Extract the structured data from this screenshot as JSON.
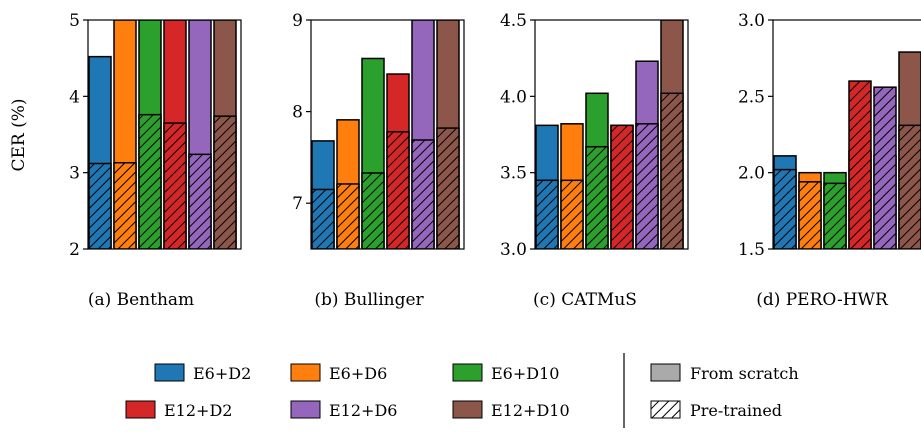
{
  "chart_data": [
    {
      "type": "bar",
      "caption": "(a) Bentham",
      "ylabel": "CER (%)",
      "ylim": [
        2,
        5
      ],
      "yticks": [
        "2",
        "3",
        "4",
        "5"
      ],
      "series": [
        {
          "name": "E6+D2",
          "from_scratch": 4.52,
          "pretrained": 3.12
        },
        {
          "name": "E6+D6",
          "from_scratch": 5.0,
          "pretrained": 3.13
        },
        {
          "name": "E6+D10",
          "from_scratch": 5.0,
          "pretrained": 3.76
        },
        {
          "name": "E12+D2",
          "from_scratch": 5.0,
          "pretrained": 3.65
        },
        {
          "name": "E12+D6",
          "from_scratch": 5.0,
          "pretrained": 3.24
        },
        {
          "name": "E12+D10",
          "from_scratch": 5.0,
          "pretrained": 3.74
        }
      ]
    },
    {
      "type": "bar",
      "caption": "(b) Bullinger",
      "ylabel": "",
      "ylim": [
        6.5,
        9
      ],
      "yticks": [
        "7",
        "8",
        "9"
      ],
      "series": [
        {
          "name": "E6+D2",
          "from_scratch": 7.68,
          "pretrained": 7.15
        },
        {
          "name": "E6+D6",
          "from_scratch": 7.91,
          "pretrained": 7.21
        },
        {
          "name": "E6+D10",
          "from_scratch": 8.58,
          "pretrained": 7.33
        },
        {
          "name": "E12+D2",
          "from_scratch": 8.41,
          "pretrained": 7.78
        },
        {
          "name": "E12+D6",
          "from_scratch": 9.0,
          "pretrained": 7.69
        },
        {
          "name": "E12+D10",
          "from_scratch": 9.0,
          "pretrained": 7.82
        }
      ]
    },
    {
      "type": "bar",
      "caption": "(c) CATMuS",
      "ylabel": "",
      "ylim": [
        3.0,
        4.5
      ],
      "yticks": [
        "3.0",
        "3.5",
        "4.0",
        "4.5"
      ],
      "series": [
        {
          "name": "E6+D2",
          "from_scratch": 3.81,
          "pretrained": 3.45
        },
        {
          "name": "E6+D6",
          "from_scratch": 3.82,
          "pretrained": 3.45
        },
        {
          "name": "E6+D10",
          "from_scratch": 4.02,
          "pretrained": 3.67
        },
        {
          "name": "E12+D2",
          "from_scratch": 3.81,
          "pretrained": 3.81
        },
        {
          "name": "E12+D6",
          "from_scratch": 4.23,
          "pretrained": 3.82
        },
        {
          "name": "E12+D10",
          "from_scratch": 4.5,
          "pretrained": 4.02
        }
      ]
    },
    {
      "type": "bar",
      "caption": "(d) PERO-HWR",
      "ylabel": "",
      "ylim": [
        1.5,
        3.0
      ],
      "yticks": [
        "1.5",
        "2.0",
        "2.5",
        "3.0"
      ],
      "series": [
        {
          "name": "E6+D2",
          "from_scratch": 2.11,
          "pretrained": 2.02
        },
        {
          "name": "E6+D6",
          "from_scratch": 2.0,
          "pretrained": 1.94
        },
        {
          "name": "E6+D10",
          "from_scratch": 2.0,
          "pretrained": 1.93
        },
        {
          "name": "E12+D2",
          "from_scratch": 2.14,
          "pretrained": 2.6
        },
        {
          "name": "E12+D6",
          "from_scratch": 2.11,
          "pretrained": 2.56
        },
        {
          "name": "E12+D10",
          "from_scratch": 2.79,
          "pretrained": 2.31
        }
      ]
    }
  ],
  "legend": {
    "series": [
      {
        "label": "E6+D2",
        "color": "#1f77b4"
      },
      {
        "label": "E6+D6",
        "color": "#ff7f0e"
      },
      {
        "label": "E6+D10",
        "color": "#2ca02c"
      },
      {
        "label": "E12+D2",
        "color": "#d62728"
      },
      {
        "label": "E12+D6",
        "color": "#9467bd"
      },
      {
        "label": "E12+D10",
        "color": "#8c564b"
      }
    ],
    "from_scratch_label": "From scratch",
    "pretrained_label": "Pre-trained",
    "from_scratch_color": "#aaaaaa"
  }
}
